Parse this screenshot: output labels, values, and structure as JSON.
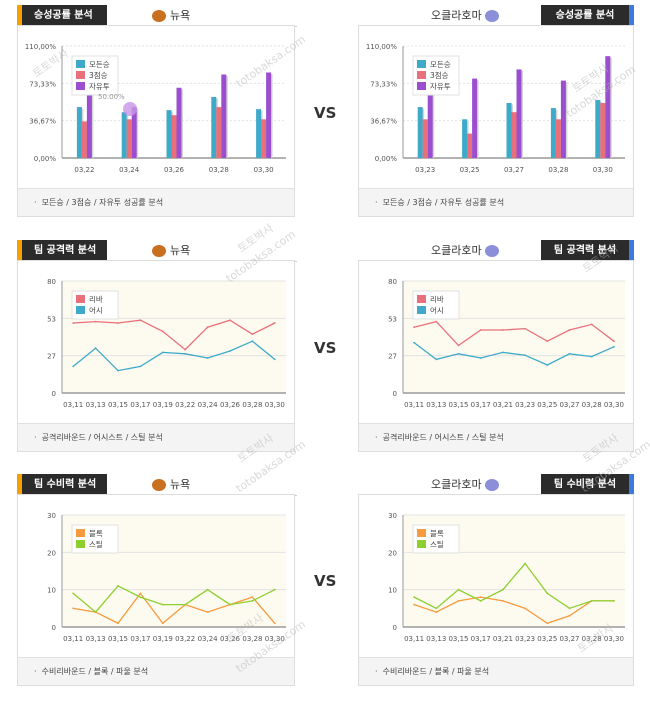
{
  "sections": [
    {
      "id": "success",
      "left_tab": "승성공률 분석",
      "right_tab": "승성공률 분석",
      "left_team": "뉴욕",
      "right_team": "오클라호마",
      "left_footer": "모든승 / 3점승 / 자유투 성공률 분석",
      "right_footer": "모든승 / 3점승 / 자유투 성공률 분석"
    },
    {
      "id": "attack",
      "left_tab": "팀 공격력 분석",
      "right_tab": "팀 공격력 분석",
      "left_team": "뉴욕",
      "right_team": "오클라호마",
      "left_footer": "공격리바운드 / 어시스트 / 스틸 분석",
      "right_footer": "공격리바운드 / 어시스트 / 스틸 분석"
    },
    {
      "id": "defense",
      "left_tab": "팀 수비력 분석",
      "right_tab": "팀 수비력 분석",
      "left_team": "뉴욕",
      "right_team": "오클라호마",
      "left_footer": "수비리바운드 / 블록 / 파울 분석",
      "right_footer": "수비리바운드 / 블록 / 파울 분석"
    }
  ],
  "vs_label": "VS",
  "watermark": [
    "토토박사",
    "totobaksa.com"
  ],
  "tooltip": "50.00%",
  "colors": {
    "teal": "#3fa9c9",
    "red": "#e8707a",
    "purple": "#9b4fd0",
    "orange": "#f59a3e",
    "green": "#8ccf2f",
    "tab_left_accent": "#f5a100",
    "tab_right_accent": "#3b7be0"
  },
  "chart_data": [
    {
      "type": "bar",
      "panel": "left-success",
      "categories": [
        "03,22",
        "03,24",
        "03,26",
        "03,28",
        "03,30"
      ],
      "ylim": [
        0,
        110
      ],
      "yticks": [
        "0,00%",
        "36,67%",
        "73,33%",
        "110,00%"
      ],
      "series": [
        {
          "name": "모든승",
          "color": "#3fa9c9",
          "values": [
            50,
            45,
            47,
            60,
            48
          ]
        },
        {
          "name": "3점승",
          "color": "#e8707a",
          "values": [
            36,
            38,
            42,
            50,
            38
          ]
        },
        {
          "name": "자유투",
          "color": "#9b4fd0",
          "values": [
            64,
            50,
            69,
            82,
            84
          ]
        }
      ]
    },
    {
      "type": "bar",
      "panel": "right-success",
      "categories": [
        "03,23",
        "03,25",
        "03,27",
        "03,28",
        "03,30"
      ],
      "ylim": [
        0,
        110
      ],
      "yticks": [
        "0,00%",
        "36,67%",
        "73,33%",
        "110,00%"
      ],
      "series": [
        {
          "name": "모든승",
          "color": "#3fa9c9",
          "values": [
            50,
            38,
            54,
            49,
            57
          ]
        },
        {
          "name": "3점승",
          "color": "#e8707a",
          "values": [
            38,
            24,
            45,
            38,
            54
          ]
        },
        {
          "name": "자유투",
          "color": "#9b4fd0",
          "values": [
            85,
            78,
            87,
            76,
            100
          ]
        }
      ]
    },
    {
      "type": "line",
      "panel": "left-attack",
      "x": [
        "03,11",
        "03,13",
        "03,15",
        "03,17",
        "03,19",
        "03,22",
        "03,24",
        "03,26",
        "03,28",
        "03,30"
      ],
      "ylim": [
        0,
        80
      ],
      "yticks": [
        "0",
        "27",
        "53",
        "80"
      ],
      "series": [
        {
          "name": "리바",
          "color": "#e8707a",
          "values": [
            50,
            51,
            50,
            52,
            44,
            31,
            47,
            52,
            42,
            50
          ]
        },
        {
          "name": "어시",
          "color": "#3fa9c9",
          "values": [
            19,
            32,
            16,
            19,
            29,
            28,
            25,
            30,
            37,
            24
          ]
        }
      ]
    },
    {
      "type": "line",
      "panel": "right-attack",
      "x": [
        "03,11",
        "03,13",
        "03,15",
        "03,17",
        "03,21",
        "03,23",
        "03,25",
        "03,27",
        "03,28",
        "03,30"
      ],
      "ylim": [
        0,
        80
      ],
      "yticks": [
        "0",
        "27",
        "53",
        "80"
      ],
      "series": [
        {
          "name": "리바",
          "color": "#e8707a",
          "values": [
            47,
            51,
            34,
            45,
            45,
            46,
            37,
            45,
            49,
            37
          ]
        },
        {
          "name": "어시",
          "color": "#3fa9c9",
          "values": [
            36,
            24,
            28,
            25,
            29,
            27,
            20,
            28,
            26,
            33
          ]
        }
      ]
    },
    {
      "type": "line",
      "panel": "left-defense",
      "x": [
        "03,11",
        "03,13",
        "03,15",
        "03,17",
        "03,19",
        "03,22",
        "03,24",
        "03,26",
        "03,28",
        "03,30"
      ],
      "ylim": [
        0,
        30
      ],
      "yticks": [
        "0",
        "10",
        "20",
        "30"
      ],
      "series": [
        {
          "name": "블록",
          "color": "#f59a3e",
          "values": [
            5,
            4,
            1,
            9,
            1,
            6,
            4,
            6,
            8,
            1
          ]
        },
        {
          "name": "스틸",
          "color": "#8ccf2f",
          "values": [
            9,
            4,
            11,
            8,
            6,
            6,
            10,
            6,
            7,
            10
          ]
        }
      ]
    },
    {
      "type": "line",
      "panel": "right-defense",
      "x": [
        "03,11",
        "03,13",
        "03,15",
        "03,17",
        "03,21",
        "03,23",
        "03,25",
        "03,27",
        "03,28",
        "03,30"
      ],
      "ylim": [
        0,
        30
      ],
      "yticks": [
        "0",
        "10",
        "20",
        "30"
      ],
      "series": [
        {
          "name": "블록",
          "color": "#f59a3e",
          "values": [
            6,
            4,
            7,
            8,
            7,
            5,
            1,
            3,
            7,
            7
          ]
        },
        {
          "name": "스틸",
          "color": "#8ccf2f",
          "values": [
            8,
            5,
            10,
            7,
            10,
            17,
            9,
            5,
            7,
            7
          ]
        }
      ]
    }
  ]
}
